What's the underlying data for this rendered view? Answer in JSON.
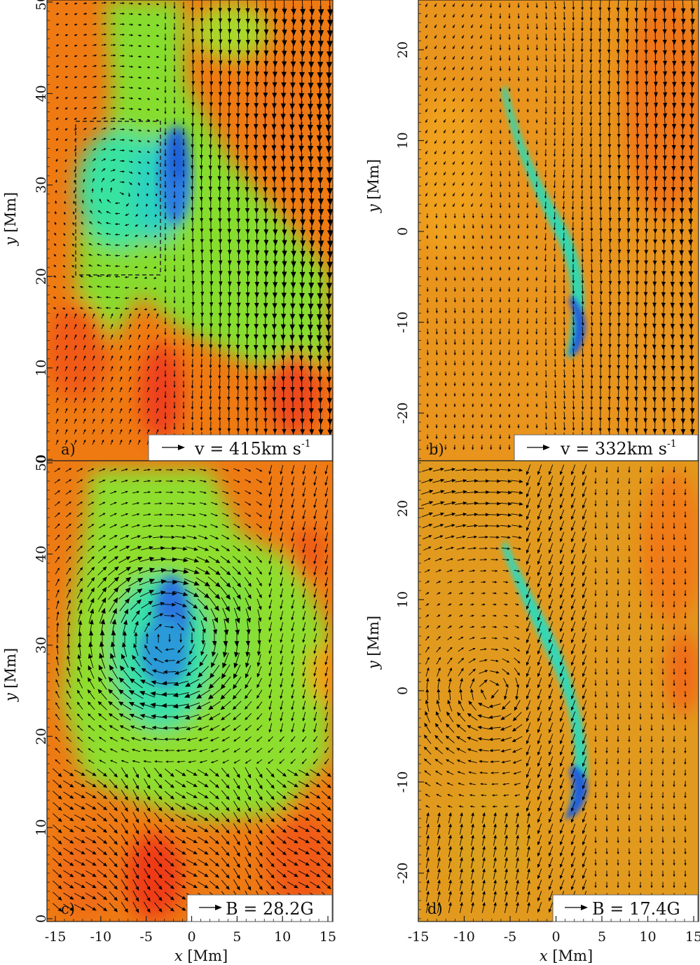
{
  "colors": {
    "hot": "#ee3a1a",
    "warm": "#f07a10",
    "amber": "#e89a18",
    "yellow_green": "#b8c824",
    "green": "#7ae030",
    "cyan": "#30e0a0",
    "teal": "#28c8c8",
    "blue": "#2070e0",
    "arrow": "#000000"
  },
  "axes": {
    "x_title": "x [Mm]",
    "y_title": "y [Mm]",
    "x_ticks": [
      "-15",
      "-10",
      "-5",
      "0",
      "5",
      "10",
      "15"
    ],
    "y_ticks_left": [
      "0",
      "10",
      "20",
      "30",
      "40",
      "50"
    ],
    "y_ticks_right": [
      "-20",
      "-10",
      "0",
      "10",
      "20"
    ]
  },
  "panels": [
    {
      "label": "a)",
      "legend_text": "v = 415km s",
      "legend_sup": "-1"
    },
    {
      "label": "b)",
      "legend_text": "v = 332km s",
      "legend_sup": "-1"
    },
    {
      "label": "c)",
      "legend_text": "B = 28.2G",
      "legend_sup": ""
    },
    {
      "label": "d)",
      "legend_text": "B = 17.4G",
      "legend_sup": ""
    }
  ],
  "chart_data": [
    {
      "type": "heatmap",
      "panel": "a",
      "quantity": "velocity field",
      "xlim": [
        -15,
        15
      ],
      "ylim": [
        0,
        50
      ],
      "reference_vector": "v = 415km s-1",
      "highlight_box": {
        "x": [
          -13,
          -3.5
        ],
        "y": [
          20,
          37
        ]
      }
    },
    {
      "type": "heatmap",
      "panel": "b",
      "quantity": "velocity field",
      "xlim": [
        -15,
        15
      ],
      "ylim": [
        -25,
        25
      ],
      "reference_vector": "v = 332km s-1"
    },
    {
      "type": "heatmap",
      "panel": "c",
      "quantity": "magnetic field",
      "xlim": [
        -15,
        15
      ],
      "ylim": [
        0,
        50
      ],
      "reference_vector": "B = 28.2G"
    },
    {
      "type": "heatmap",
      "panel": "d",
      "quantity": "magnetic field",
      "xlim": [
        -15,
        15
      ],
      "ylim": [
        -25,
        25
      ],
      "reference_vector": "B = 17.4G"
    }
  ]
}
